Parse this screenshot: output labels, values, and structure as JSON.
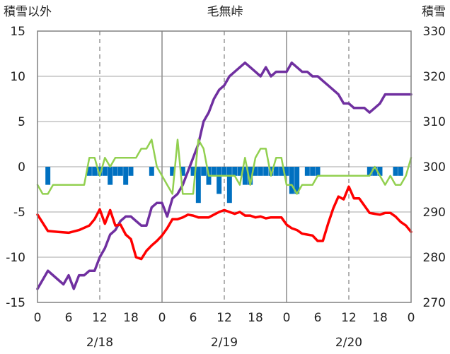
{
  "chart_data": {
    "type": "line",
    "title": "毛無峠",
    "y_left_label": "積雪以外",
    "y_right_label": "積雪",
    "y_left_range": [
      -15,
      15
    ],
    "y_left_ticks": [
      "15",
      "10",
      "5",
      "0",
      "-5",
      "-10",
      "-15"
    ],
    "y_right_range": [
      270,
      330
    ],
    "y_right_ticks": [
      "330",
      "320",
      "310",
      "300",
      "290",
      "280",
      "270"
    ],
    "x_range_hours": [
      0,
      72
    ],
    "x_tick_labels": [
      "0",
      "6",
      "12",
      "18",
      "0",
      "6",
      "12",
      "18",
      "0",
      "6",
      "12",
      "18",
      "0"
    ],
    "x_tick_hours": [
      0,
      6,
      12,
      18,
      24,
      30,
      36,
      42,
      48,
      54,
      60,
      66,
      72
    ],
    "date_labels": [
      {
        "label": "2/18",
        "hour": 12
      },
      {
        "label": "2/19",
        "hour": 36
      },
      {
        "label": "2/20",
        "hour": 60
      }
    ],
    "day_boundaries": [
      24,
      48
    ],
    "dashed_hours": [
      12,
      36,
      60
    ],
    "grid": "horizontal lines every 5 units; solid gray at day boundaries; dashed at noon",
    "colors": {
      "snow_depth": "#7030a0",
      "temperature": "#ff0000",
      "wind": "#92d050",
      "bars": "#0070c0"
    },
    "series": [
      {
        "key": "snow_depth",
        "axis": "right",
        "x": [
          0,
          2,
          4,
          5,
          6,
          7,
          8,
          9,
          10,
          11,
          12,
          13,
          14,
          15,
          16,
          17,
          18,
          19,
          20,
          21,
          22,
          23,
          24,
          25,
          26,
          27,
          28,
          29,
          30,
          31,
          32,
          33,
          34,
          35,
          36,
          37,
          38,
          39,
          40,
          41,
          42,
          43,
          44,
          45,
          46,
          47,
          48,
          49,
          50,
          51,
          52,
          53,
          54,
          55,
          56,
          57,
          58,
          59,
          60,
          61,
          62,
          63,
          64,
          65,
          66,
          67,
          68,
          69,
          70,
          71,
          72
        ],
        "values": [
          273,
          277,
          275,
          274,
          276,
          273,
          276,
          276,
          277,
          277,
          280,
          282,
          285,
          286,
          288,
          289,
          289,
          288,
          287,
          287,
          291,
          292,
          292,
          289,
          293,
          294,
          296,
          299,
          302,
          305,
          310,
          312,
          315,
          317,
          318,
          320,
          321,
          322,
          323,
          322,
          321,
          320,
          322,
          320,
          321,
          321,
          321,
          323,
          322,
          321,
          321,
          320,
          320,
          319,
          318,
          317,
          316,
          314,
          314,
          313,
          313,
          313,
          312,
          313,
          314,
          316,
          316,
          316,
          316,
          316,
          316
        ]
      },
      {
        "key": "temperature",
        "axis": "left",
        "x": [
          0,
          2,
          4,
          6,
          8,
          10,
          11,
          12,
          13,
          14,
          15,
          16,
          17,
          18,
          19,
          20,
          21,
          22,
          23,
          24,
          25,
          26,
          27,
          28,
          29,
          30,
          31,
          32,
          33,
          34,
          35,
          36,
          37,
          38,
          39,
          40,
          41,
          42,
          43,
          44,
          45,
          46,
          47,
          48,
          49,
          50,
          51,
          52,
          53,
          54,
          55,
          56,
          57,
          58,
          59,
          60,
          61,
          62,
          63,
          64,
          65,
          66,
          67,
          68,
          69,
          70,
          71,
          72
        ],
        "values": [
          -5.3,
          -7.1,
          -7.2,
          -7.3,
          -7.0,
          -6.5,
          -5.8,
          -4.7,
          -6.3,
          -4.8,
          -6.5,
          -6.4,
          -7.5,
          -8.0,
          -10.0,
          -10.2,
          -9.3,
          -8.7,
          -8.2,
          -7.6,
          -6.8,
          -5.8,
          -5.8,
          -5.6,
          -5.3,
          -5.4,
          -5.6,
          -5.6,
          -5.6,
          -5.3,
          -5.0,
          -4.8,
          -5.0,
          -5.2,
          -5.0,
          -5.4,
          -5.4,
          -5.6,
          -5.5,
          -5.7,
          -5.6,
          -5.6,
          -5.6,
          -6.4,
          -6.8,
          -7.0,
          -7.4,
          -7.5,
          -7.6,
          -8.2,
          -8.2,
          -6.3,
          -4.6,
          -3.3,
          -3.6,
          -2.2,
          -3.5,
          -3.5,
          -4.3,
          -5.1,
          -5.2,
          -5.3,
          -5.1,
          -5.1,
          -5.5,
          -6.1,
          -6.5,
          -7.2
        ]
      },
      {
        "key": "wind",
        "axis": "left",
        "x": [
          0,
          1,
          2,
          3,
          4,
          5,
          6,
          7,
          8,
          9,
          10,
          11,
          12,
          13,
          14,
          15,
          16,
          17,
          18,
          19,
          20,
          21,
          22,
          23,
          24,
          25,
          26,
          27,
          28,
          29,
          30,
          31,
          32,
          33,
          34,
          35,
          36,
          37,
          38,
          39,
          40,
          41,
          42,
          43,
          44,
          45,
          46,
          47,
          48,
          49,
          50,
          51,
          52,
          53,
          54,
          55,
          56,
          57,
          58,
          59,
          60,
          61,
          62,
          63,
          64,
          65,
          66,
          67,
          68,
          69,
          70,
          71,
          72
        ],
        "values": [
          -2,
          -3,
          -3,
          -2,
          -2,
          -2,
          -2,
          -2,
          -2,
          -2,
          1,
          1,
          -1,
          1,
          0,
          1,
          1,
          1,
          1,
          1,
          2,
          2,
          3,
          0,
          -1,
          -2,
          -3,
          3,
          -3,
          -3,
          -3,
          3,
          2,
          -1,
          -1,
          -1,
          -1,
          -1,
          -1,
          -2,
          1,
          -2,
          1,
          2,
          2,
          -1,
          1,
          1,
          -2,
          -2,
          -3,
          -2,
          -2,
          -2,
          -1,
          -1,
          -1,
          -1,
          -1,
          -1,
          -1,
          -1,
          -1,
          -1,
          -1,
          0,
          -1,
          -2,
          -1,
          -2,
          -2,
          -1,
          1
        ]
      },
      {
        "key": "hourly_snow_bars",
        "axis": "left",
        "x": [
          2,
          10,
          11,
          12,
          13,
          14,
          15,
          16,
          17,
          18,
          22,
          26,
          28,
          30,
          31,
          32,
          33,
          34,
          35,
          36,
          37,
          38,
          39,
          40,
          41,
          42,
          43,
          44,
          45,
          46,
          47,
          48,
          49,
          50,
          52,
          53,
          54,
          64,
          65,
          66,
          69,
          70
        ],
        "values": [
          -2,
          -1,
          -1,
          -1,
          -1,
          -2,
          -1,
          -1,
          -2,
          -1,
          -1,
          -1,
          -1,
          -1,
          -4,
          -1,
          -2,
          -1,
          -3,
          -1,
          -4,
          -1,
          -1,
          -2,
          -2,
          -1,
          -1,
          -1,
          -1,
          -1,
          -1,
          -1,
          -3,
          -3,
          -1,
          -1,
          -1,
          -1,
          -1,
          -1,
          -1,
          -1
        ]
      }
    ]
  }
}
